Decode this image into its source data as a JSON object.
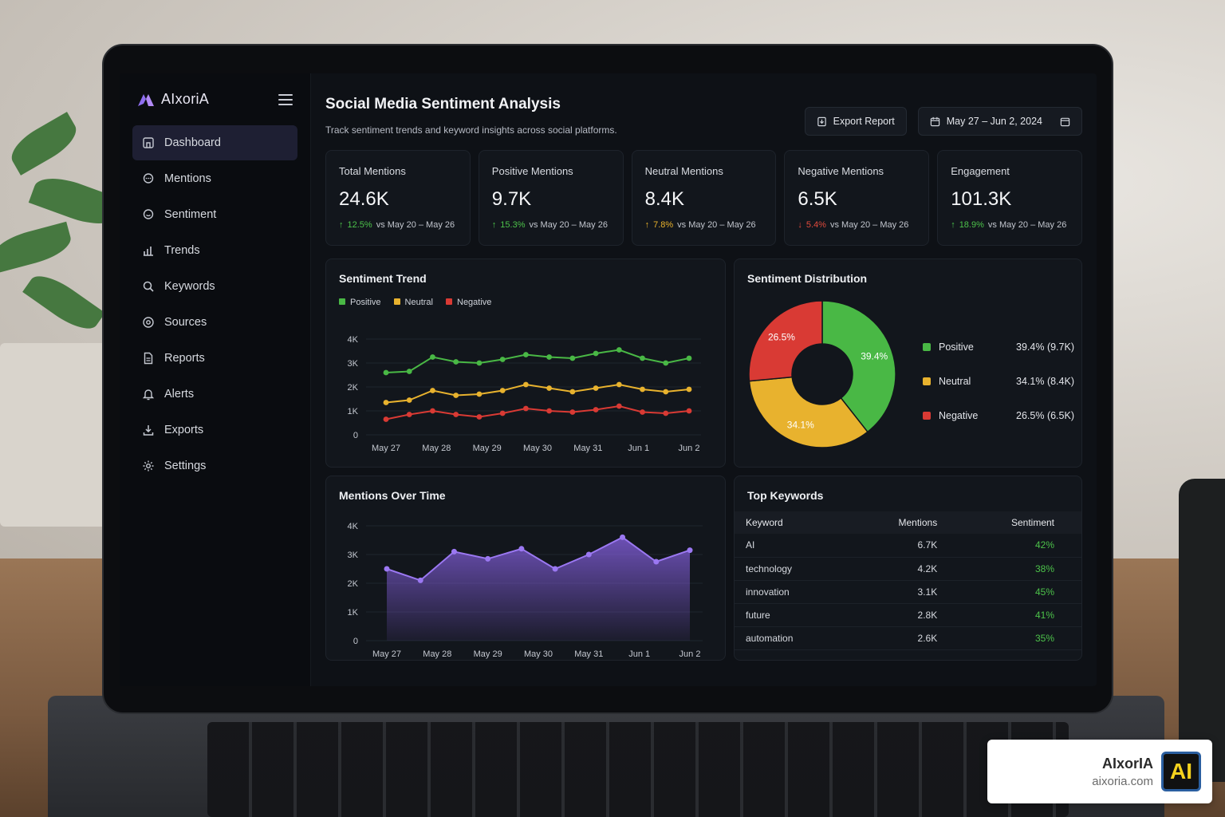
{
  "app": {
    "name": "AIxoriA"
  },
  "sidebar": {
    "items": [
      {
        "label": "Dashboard",
        "icon": "dashboard-icon",
        "active": true
      },
      {
        "label": "Mentions",
        "icon": "chat-icon"
      },
      {
        "label": "Sentiment",
        "icon": "smile-chat-icon"
      },
      {
        "label": "Trends",
        "icon": "bar-chart-icon"
      },
      {
        "label": "Keywords",
        "icon": "search-icon"
      },
      {
        "label": "Sources",
        "icon": "target-icon"
      },
      {
        "label": "Reports",
        "icon": "document-icon"
      },
      {
        "label": "Alerts",
        "icon": "bell-icon"
      },
      {
        "label": "Exports",
        "icon": "download-icon"
      },
      {
        "label": "Settings",
        "icon": "gear-icon"
      }
    ]
  },
  "header": {
    "title": "Social Media Sentiment Analysis",
    "subtitle": "Track sentiment trends and keyword insights across social platforms.",
    "export_label": "Export Report",
    "date_range": "May 27 – Jun 2, 2024"
  },
  "stats": [
    {
      "label": "Total Mentions",
      "value": "24.6K",
      "delta": "12.5%",
      "direction": "up",
      "compare": "vs May 20 – May 26"
    },
    {
      "label": "Positive Mentions",
      "value": "9.7K",
      "delta": "15.3%",
      "direction": "up",
      "compare": "vs May 20 – May 26"
    },
    {
      "label": "Neutral Mentions",
      "value": "8.4K",
      "delta": "7.8%",
      "direction": "up-warn",
      "compare": "vs May 20 – May 26"
    },
    {
      "label": "Negative Mentions",
      "value": "6.5K",
      "delta": "5.4%",
      "direction": "down",
      "compare": "vs May 20 – May 26"
    },
    {
      "label": "Engagement",
      "value": "101.3K",
      "delta": "18.9%",
      "direction": "up",
      "compare": "vs May 20 – May 26"
    }
  ],
  "colors": {
    "positive": "#49b845",
    "neutral": "#e8b22e",
    "negative": "#d93a34",
    "mentions": "#8a63e8"
  },
  "chart_data": [
    {
      "type": "line",
      "title": "Sentiment Trend",
      "x": [
        "May 27",
        "May 27.5",
        "May 28",
        "May 28.5",
        "May 29",
        "May 29.5",
        "May 30",
        "May 30.5",
        "May 31",
        "May 31.5",
        "Jun 1",
        "Jun 1.5",
        "Jun 1.75",
        "Jun 2"
      ],
      "x_ticks": [
        "May 27",
        "May 28",
        "May 29",
        "May 30",
        "May 31",
        "Jun 1",
        "Jun 2"
      ],
      "y_ticks": [
        "0",
        "1K",
        "2K",
        "3K",
        "4K"
      ],
      "ylim": [
        0,
        4000
      ],
      "series": [
        {
          "name": "Positive",
          "values": [
            2600,
            2650,
            3250,
            3050,
            3000,
            3150,
            3350,
            3250,
            3200,
            3400,
            3550,
            3200,
            3000,
            3200
          ]
        },
        {
          "name": "Neutral",
          "values": [
            1350,
            1450,
            1850,
            1650,
            1700,
            1850,
            2100,
            1950,
            1800,
            1950,
            2100,
            1900,
            1800,
            1900
          ]
        },
        {
          "name": "Negative",
          "values": [
            650,
            850,
            1000,
            850,
            750,
            900,
            1100,
            1000,
            950,
            1050,
            1200,
            950,
            900,
            1000
          ]
        }
      ],
      "legend_position": "top-left",
      "grid": true
    },
    {
      "type": "pie",
      "title": "Sentiment Distribution",
      "slices": [
        {
          "name": "Positive",
          "percent": 39.4,
          "label": "39.4%",
          "detail": "39.4% (9.7K)"
        },
        {
          "name": "Neutral",
          "percent": 34.1,
          "label": "34.1%",
          "detail": "34.1% (8.4K)"
        },
        {
          "name": "Negative",
          "percent": 26.5,
          "label": "26.5%",
          "detail": "26.5% (6.5K)"
        }
      ]
    },
    {
      "type": "area",
      "title": "Mentions Over Time",
      "x_ticks": [
        "May 27",
        "May 28",
        "May 29",
        "May 30",
        "May 31",
        "Jun 1",
        "Jun 2"
      ],
      "y_ticks": [
        "0",
        "1K",
        "2K",
        "3K",
        "4K"
      ],
      "ylim": [
        0,
        4000
      ],
      "values": [
        2500,
        2100,
        3100,
        2850,
        3200,
        2500,
        3000,
        3600,
        2750,
        3150
      ],
      "grid": true
    },
    {
      "type": "table",
      "title": "Top Keywords",
      "columns": [
        "Keyword",
        "Mentions",
        "Sentiment"
      ],
      "rows": [
        [
          "AI",
          "6.7K",
          "42%"
        ],
        [
          "technology",
          "4.2K",
          "38%"
        ],
        [
          "innovation",
          "3.1K",
          "45%"
        ],
        [
          "future",
          "2.8K",
          "41%"
        ],
        [
          "automation",
          "2.6K",
          "35%"
        ]
      ]
    }
  ],
  "watermark": {
    "name": "AIxorIA",
    "url": "aixoria.com",
    "logo_text": "AI"
  }
}
